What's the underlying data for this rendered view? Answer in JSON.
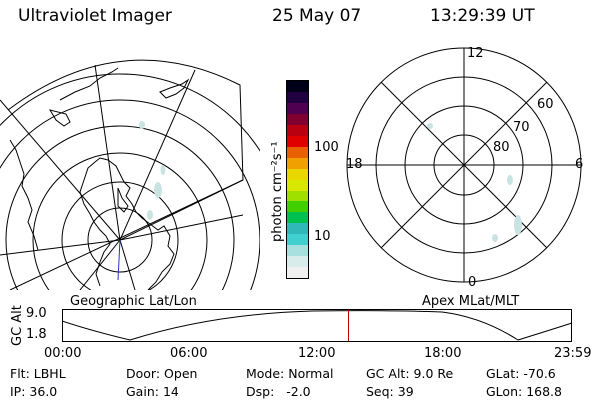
{
  "header": {
    "instrument": "Ultraviolet Imager",
    "date": "25 May 07",
    "time": "13:29:39 UT"
  },
  "left_map": {
    "caption": "Geographic Lat/Lon"
  },
  "right_map": {
    "caption": "Apex MLat/MLT",
    "mlt_labels": [
      "12",
      "18",
      "6",
      "0"
    ],
    "mlat_labels": [
      "60",
      "70",
      "80"
    ]
  },
  "colorbar": {
    "unit_label": "photon cm⁻²s⁻¹",
    "ticks": [
      "100",
      "10"
    ],
    "colors": [
      "#f0f0f0",
      "#d8ecec",
      "#a8e0e0",
      "#40d0d0",
      "#30b8b8",
      "#00c050",
      "#40d000",
      "#a0e000",
      "#d8e800",
      "#e8d800",
      "#f0a000",
      "#e86000",
      "#e00000",
      "#b80010",
      "#800030",
      "#500050",
      "#200040",
      "#000018"
    ]
  },
  "timeline": {
    "axis_label": "GC Alt",
    "y_ticks": [
      "9.0",
      "1.8"
    ],
    "x_ticks": [
      "00:00",
      "06:00",
      "12:00",
      "18:00",
      "23:59"
    ],
    "current_time_fraction": 0.562
  },
  "status": {
    "row1": [
      {
        "label": "Flt:",
        "value": "LBHL"
      },
      {
        "label": "Door:",
        "value": "Open"
      },
      {
        "label": "Mode:",
        "value": "Normal"
      },
      {
        "label": "GC Alt:",
        "value": "9.0 Re"
      },
      {
        "label": "GLat:",
        "value": "-70.6"
      }
    ],
    "row2": [
      {
        "label": "IP:",
        "value": "36.0"
      },
      {
        "label": "Gain:",
        "value": "14"
      },
      {
        "label": "Dsp:",
        "value": "  -2.0"
      },
      {
        "label": "Seq:",
        "value": "39"
      },
      {
        "label": "GLon:",
        "value": "168.8"
      }
    ]
  }
}
